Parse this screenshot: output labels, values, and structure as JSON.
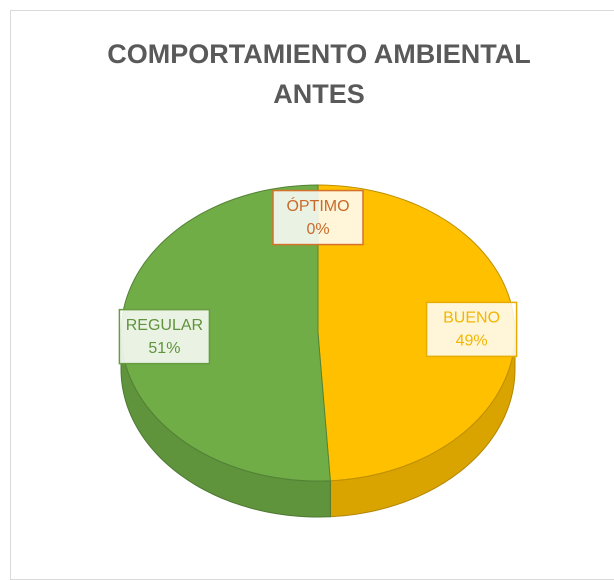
{
  "chart_data": {
    "type": "pie3d",
    "title": "COMPORTAMIENTO AMBIENTAL ANTES",
    "categories": [
      "BUENO",
      "REGULAR",
      "ÓPTIMO"
    ],
    "values": [
      49,
      51,
      0
    ],
    "value_labels": [
      "49%",
      "51%",
      "0%"
    ],
    "colors": [
      "#FFC000",
      "#70AD47",
      "#ED7D31"
    ]
  }
}
